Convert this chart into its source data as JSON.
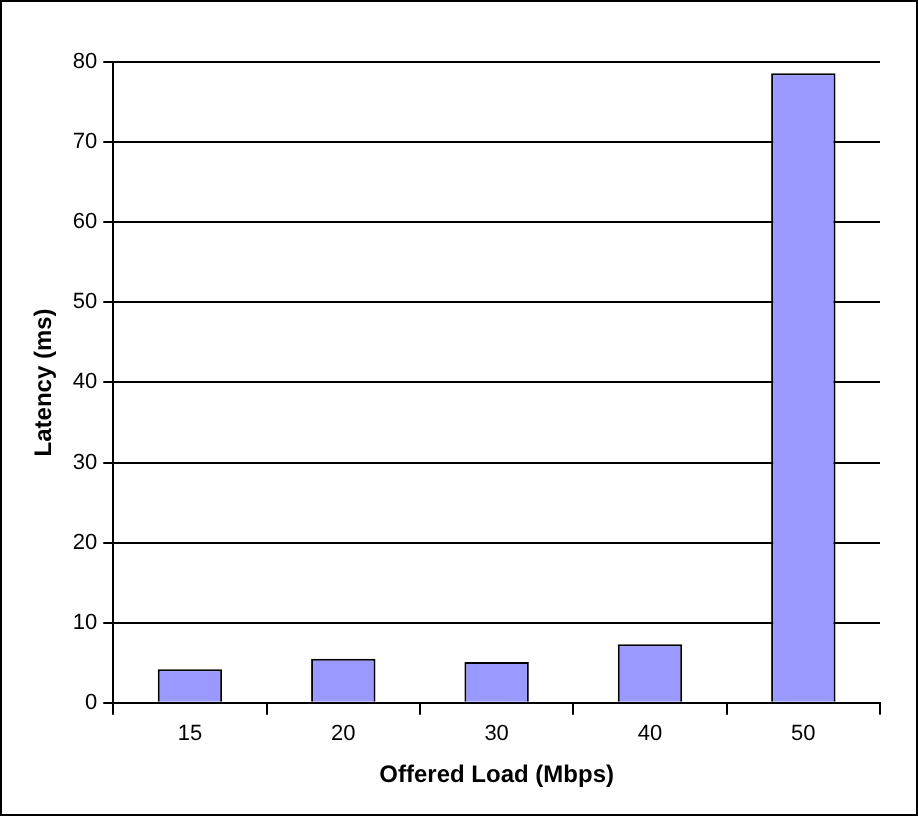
{
  "chart_data": {
    "type": "bar",
    "xlabel": "Offered Load (Mbps)",
    "ylabel": "Latency (ms)",
    "categories": [
      "15",
      "20",
      "30",
      "40",
      "50"
    ],
    "values": [
      4.2,
      5.5,
      5.1,
      7.3,
      78.6
    ],
    "color": "#9999ff",
    "ylim": [
      0,
      80
    ],
    "yticks": [
      0,
      10,
      20,
      30,
      40,
      50,
      60,
      70,
      80
    ],
    "grid": "y",
    "legend": false
  }
}
